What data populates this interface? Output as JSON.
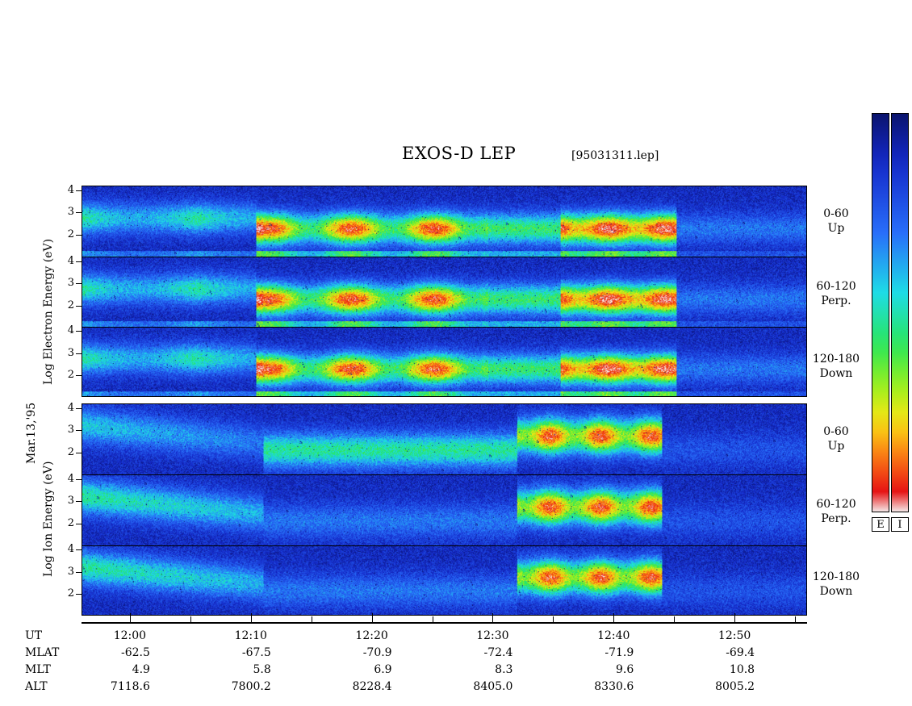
{
  "title": "EXOS-D LEP",
  "filename": "[95031311.lep]",
  "date_label": "Mar.13,'95",
  "electron_axis_label": "Log   Electron   Energy  (eV)",
  "ion_axis_label": "Log   Ion   Energy  (eV)",
  "colors": {
    "background_low": "#0a1aa8",
    "high": "#e01010",
    "colorbar_top": "#0a1a6e",
    "colorbar_bottom": "#f5f5f5"
  },
  "colorbar_labels": [
    "E",
    "I"
  ],
  "chart_data": {
    "type": "heatmap",
    "title": "EXOS-D LEP",
    "x_axis": {
      "label": "UT",
      "tick_labels": [
        "12:00",
        "12:10",
        "12:20",
        "12:30",
        "12:40",
        "12:50"
      ],
      "range": [
        "11:56",
        "12:56"
      ]
    },
    "y_range": [
      1,
      4.2
    ],
    "y_ticks": [
      "4",
      "3",
      "2"
    ],
    "panels": [
      {
        "species": "Electron",
        "pitch_angle": "0-60",
        "direction": "Up"
      },
      {
        "species": "Electron",
        "pitch_angle": "60-120",
        "direction": "Perp."
      },
      {
        "species": "Electron",
        "pitch_angle": "120-180",
        "direction": "Down"
      },
      {
        "species": "Ion",
        "pitch_angle": "0-60",
        "direction": "Up"
      },
      {
        "species": "Ion",
        "pitch_angle": "60-120",
        "direction": "Perp."
      },
      {
        "species": "Ion",
        "pitch_angle": "120-180",
        "direction": "Down"
      }
    ],
    "ephemeris": {
      "rows": [
        "UT",
        "MLAT",
        "MLT",
        "ALT"
      ],
      "columns": [
        {
          "UT": "12:00",
          "MLAT": "-62.5",
          "MLT": "4.9",
          "ALT": "7118.6"
        },
        {
          "UT": "12:10",
          "MLAT": "-67.5",
          "MLT": "5.8",
          "ALT": "7800.2"
        },
        {
          "UT": "12:20",
          "MLAT": "-70.9",
          "MLT": "6.9",
          "ALT": "8228.4"
        },
        {
          "UT": "12:30",
          "MLAT": "-72.4",
          "MLT": "8.3",
          "ALT": "8405.0"
        },
        {
          "UT": "12:40",
          "MLAT": "-71.9",
          "MLT": "9.6",
          "ALT": "8330.6"
        },
        {
          "UT": "12:50",
          "MLAT": "-69.4",
          "MLT": "10.8",
          "ALT": "8005.2"
        }
      ]
    }
  }
}
